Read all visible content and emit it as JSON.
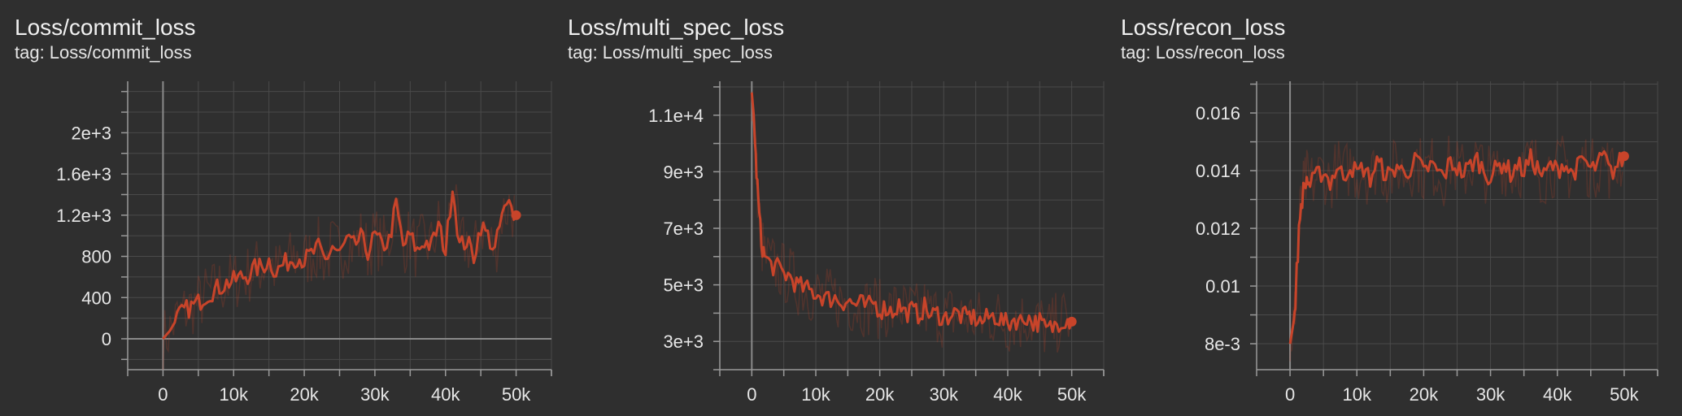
{
  "chart_data": [
    {
      "type": "line",
      "title": "Loss/commit_loss",
      "subtitle": "tag: Loss/commit_loss",
      "xlabel": "",
      "ylabel": "",
      "xlim": [
        -5000,
        55000
      ],
      "ylim": [
        -300,
        2500
      ],
      "xticks": [
        0,
        10000,
        20000,
        30000,
        40000,
        50000
      ],
      "xtick_labels": [
        "0",
        "10k",
        "20k",
        "30k",
        "40k",
        "50k"
      ],
      "yticks": [
        0,
        400,
        800,
        1200,
        1600,
        2000
      ],
      "ytick_labels": [
        "0",
        "400",
        "800",
        "1.2e+3",
        "1.6e+3",
        "2e+3"
      ],
      "grid": true,
      "color": "#c8442a",
      "series": [
        {
          "x": [
            0,
            1000,
            2000,
            3000,
            4000,
            5000,
            6000,
            7000,
            8000,
            9000,
            10000,
            11000,
            12000,
            13000,
            14000,
            15000,
            16000,
            17000,
            18000,
            19000,
            20000,
            21000,
            22000,
            23000,
            24000,
            25000,
            26000,
            27000,
            28000,
            29000,
            30000,
            31000,
            32000,
            33000,
            34000,
            35000,
            36000,
            37000,
            38000,
            39000,
            40000,
            41000,
            42000,
            43000,
            44000,
            45000,
            46000,
            47000,
            48000,
            49000,
            50000
          ],
          "y": [
            0,
            80,
            200,
            270,
            310,
            350,
            420,
            460,
            500,
            540,
            560,
            600,
            620,
            680,
            700,
            760,
            650,
            720,
            760,
            800,
            760,
            820,
            880,
            760,
            900,
            820,
            950,
            900,
            980,
            850,
            1000,
            900,
            950,
            1300,
            900,
            1000,
            850,
            950,
            900,
            1100,
            850,
            1500,
            900,
            950,
            800,
            1100,
            1000,
            850,
            1200,
            1300,
            1200
          ]
        }
      ]
    },
    {
      "type": "line",
      "title": "Loss/multi_spec_loss",
      "subtitle": "tag: Loss/multi_spec_loss",
      "xlabel": "",
      "ylabel": "",
      "xlim": [
        -5000,
        55000
      ],
      "ylim": [
        2000,
        12200
      ],
      "xticks": [
        0,
        10000,
        20000,
        30000,
        40000,
        50000
      ],
      "xtick_labels": [
        "0",
        "10k",
        "20k",
        "30k",
        "40k",
        "50k"
      ],
      "yticks": [
        3000,
        5000,
        7000,
        9000,
        11000
      ],
      "ytick_labels": [
        "3e+3",
        "5e+3",
        "7e+3",
        "9e+3",
        "1.1e+4"
      ],
      "grid": true,
      "color": "#c8442a",
      "series": [
        {
          "x": [
            0,
            300,
            600,
            1000,
            1500,
            2000,
            3000,
            4000,
            5000,
            6000,
            7000,
            8000,
            9000,
            10000,
            11000,
            12000,
            13000,
            14000,
            15000,
            16000,
            17000,
            18000,
            19000,
            20000,
            21000,
            22000,
            23000,
            24000,
            25000,
            26000,
            27000,
            28000,
            29000,
            30000,
            31000,
            32000,
            33000,
            34000,
            35000,
            36000,
            37000,
            38000,
            39000,
            40000,
            41000,
            42000,
            43000,
            44000,
            45000,
            46000,
            47000,
            48000,
            49000,
            50000
          ],
          "y": [
            11800,
            11000,
            9500,
            8000,
            6500,
            6000,
            5700,
            5600,
            5400,
            5300,
            5000,
            4900,
            4800,
            4700,
            4600,
            4500,
            4550,
            4400,
            4450,
            4300,
            4350,
            4200,
            4400,
            4100,
            4200,
            4050,
            4300,
            4000,
            4100,
            3950,
            4200,
            3900,
            4000,
            3800,
            3950,
            4000,
            3850,
            3900,
            3800,
            3700,
            3850,
            3900,
            3750,
            3600,
            3800,
            3700,
            3900,
            3650,
            3700,
            3400,
            3500,
            3700,
            3800,
            3700
          ]
        }
      ]
    },
    {
      "type": "line",
      "title": "Loss/recon_loss",
      "subtitle": "tag: Loss/recon_loss",
      "xlabel": "",
      "ylabel": "",
      "xlim": [
        -5000,
        55000
      ],
      "ylim": [
        0.0071,
        0.0171
      ],
      "xticks": [
        0,
        10000,
        20000,
        30000,
        40000,
        50000
      ],
      "xtick_labels": [
        "0",
        "10k",
        "20k",
        "30k",
        "40k",
        "50k"
      ],
      "yticks": [
        0.008,
        0.01,
        0.012,
        0.014,
        0.016
      ],
      "ytick_labels": [
        "8e-3",
        "0.01",
        "0.012",
        "0.014",
        "0.016"
      ],
      "grid": true,
      "color": "#c8442a",
      "series": [
        {
          "x": [
            0,
            300,
            700,
            1000,
            1500,
            2000,
            2500,
            3000,
            4000,
            5000,
            6000,
            7000,
            8000,
            9000,
            10000,
            11000,
            12000,
            13000,
            14000,
            15000,
            16000,
            17000,
            18000,
            19000,
            20000,
            21000,
            22000,
            23000,
            24000,
            25000,
            26000,
            27000,
            28000,
            29000,
            30000,
            31000,
            32000,
            33000,
            34000,
            35000,
            36000,
            37000,
            38000,
            39000,
            40000,
            41000,
            42000,
            43000,
            44000,
            45000,
            46000,
            47000,
            48000,
            49000,
            50000
          ],
          "y": [
            0.008,
            0.0084,
            0.009,
            0.0105,
            0.0125,
            0.0133,
            0.0137,
            0.0135,
            0.0138,
            0.014,
            0.0136,
            0.0141,
            0.0138,
            0.0142,
            0.0139,
            0.0141,
            0.0137,
            0.0143,
            0.014,
            0.0138,
            0.0142,
            0.0139,
            0.0141,
            0.0144,
            0.0139,
            0.0142,
            0.014,
            0.0138,
            0.0143,
            0.0141,
            0.0139,
            0.0142,
            0.0144,
            0.014,
            0.0138,
            0.0141,
            0.0143,
            0.0139,
            0.0142,
            0.014,
            0.0144,
            0.0141,
            0.0138,
            0.0142,
            0.014,
            0.0143,
            0.0139,
            0.0141,
            0.0144,
            0.014,
            0.0142,
            0.0145,
            0.0139,
            0.0142,
            0.0145
          ]
        }
      ]
    }
  ]
}
